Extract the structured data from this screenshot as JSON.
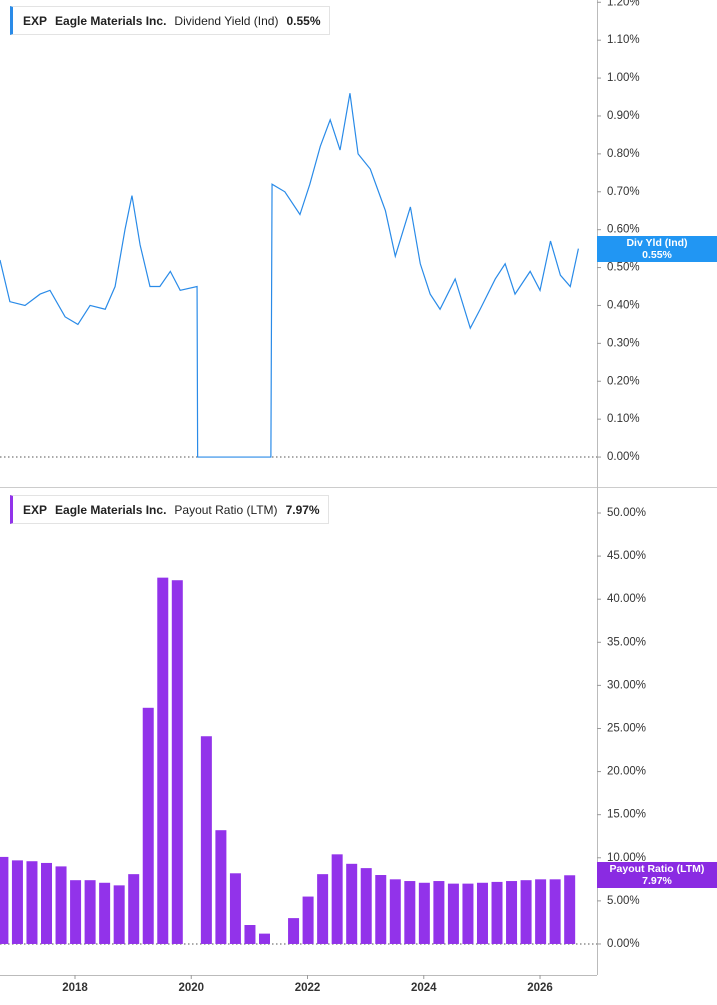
{
  "chart_data": [
    {
      "type": "line",
      "ticker": "EXP",
      "company": "Eagle Materials Inc.",
      "badge_label": "Div Yld (Ind)",
      "last": {
        "value": 0.55,
        "label": "0.55%"
      },
      "series": [
        {
          "name": "Dividend Yield (Ind)",
          "color": "#2a8be8",
          "x": [
            2016.71,
            2016.88,
            2017.14,
            2017.4,
            2017.57,
            2017.83,
            2018.05,
            2018.26,
            2018.52,
            2018.69,
            2018.86,
            2018.98,
            2019.12,
            2019.29,
            2019.46,
            2019.64,
            2019.81,
            2020.1,
            2020.11,
            2021.37,
            2021.39,
            2021.61,
            2021.87,
            2022.04,
            2022.22,
            2022.39,
            2022.56,
            2022.73,
            2022.87,
            2023.08,
            2023.34,
            2023.51,
            2023.77,
            2023.94,
            2024.11,
            2024.28,
            2024.54,
            2024.8,
            2024.97,
            2025.23,
            2025.4,
            2025.57,
            2025.83,
            2026.0,
            2026.18,
            2026.35,
            2026.52,
            2026.66
          ],
          "values": [
            0.52,
            0.41,
            0.4,
            0.43,
            0.44,
            0.37,
            0.35,
            0.4,
            0.39,
            0.45,
            0.6,
            0.69,
            0.56,
            0.45,
            0.45,
            0.49,
            0.44,
            0.45,
            0,
            0,
            0.72,
            0.7,
            0.64,
            0.72,
            0.82,
            0.89,
            0.81,
            0.96,
            0.8,
            0.76,
            0.65,
            0.53,
            0.66,
            0.51,
            0.43,
            0.39,
            0.47,
            0.34,
            0.39,
            0.47,
            0.51,
            0.43,
            0.49,
            0.44,
            0.57,
            0.48,
            0.45,
            0.55
          ]
        }
      ],
      "xlim": [
        2016.71,
        2026.98
      ],
      "ylim": [
        -0.079,
        1.206
      ],
      "yticks": [
        {
          "value": 0,
          "label": "0.00%"
        },
        {
          "value": 0.1,
          "label": "0.10%"
        },
        {
          "value": 0.2,
          "label": "0.20%"
        },
        {
          "value": 0.3,
          "label": "0.30%"
        },
        {
          "value": 0.4,
          "label": "0.40%"
        },
        {
          "value": 0.5,
          "label": "0.50%"
        },
        {
          "value": 0.6,
          "label": "0.60%"
        },
        {
          "value": 0.7,
          "label": "0.70%"
        },
        {
          "value": 0.8,
          "label": "0.80%"
        },
        {
          "value": 0.9,
          "label": "0.90%"
        },
        {
          "value": 1.0,
          "label": "1.00%"
        },
        {
          "value": 1.1,
          "label": "1.10%"
        },
        {
          "value": 1.2,
          "label": "1.20%"
        }
      ]
    },
    {
      "type": "bar",
      "ticker": "EXP",
      "company": "Eagle Materials Inc.",
      "last": {
        "value": 7.97,
        "label": "7.97%"
      },
      "series": [
        {
          "name": "Payout Ratio (LTM)",
          "color": "#9233ea",
          "x": [
            2016.76,
            2017.01,
            2017.26,
            2017.51,
            2017.76,
            2018.01,
            2018.26,
            2018.51,
            2018.76,
            2019.01,
            2019.26,
            2019.51,
            2019.76,
            2020.01,
            2020.26,
            2020.51,
            2020.76,
            2021.01,
            2021.26,
            2021.51,
            2021.76,
            2022.01,
            2022.26,
            2022.51,
            2022.76,
            2023.01,
            2023.26,
            2023.51,
            2023.76,
            2024.01,
            2024.26,
            2024.51,
            2024.76,
            2025.01,
            2025.26,
            2025.51,
            2025.76,
            2026.01,
            2026.26,
            2026.51
          ],
          "values": [
            10.1,
            9.7,
            9.6,
            9.4,
            9.0,
            7.4,
            7.4,
            7.1,
            6.8,
            8.1,
            27.4,
            42.5,
            42.2,
            null,
            24.1,
            13.2,
            8.2,
            2.2,
            1.2,
            null,
            3.0,
            5.5,
            8.1,
            10.4,
            9.3,
            8.8,
            8.0,
            7.5,
            7.3,
            7.1,
            7.3,
            7.0,
            7.0,
            7.1,
            7.2,
            7.3,
            7.4,
            7.5,
            7.5,
            7.97
          ]
        }
      ],
      "xlim": [
        2016.71,
        2026.98
      ],
      "ylim": [
        -3.6,
        52.9
      ],
      "xticks": [
        2018,
        2020,
        2022,
        2024,
        2026
      ],
      "yticks": [
        {
          "value": 0,
          "label": "0.00%"
        },
        {
          "value": 5,
          "label": "5.00%"
        },
        {
          "value": 10,
          "label": "10.00%"
        },
        {
          "value": 15,
          "label": "15.00%"
        },
        {
          "value": 20,
          "label": "20.00%"
        },
        {
          "value": 25,
          "label": "25.00%"
        },
        {
          "value": 30,
          "label": "30.00%"
        },
        {
          "value": 35,
          "label": "35.00%"
        },
        {
          "value": 40,
          "label": "40.00%"
        },
        {
          "value": 45,
          "label": "45.00%"
        },
        {
          "value": 50,
          "label": "50.00%"
        }
      ]
    }
  ]
}
